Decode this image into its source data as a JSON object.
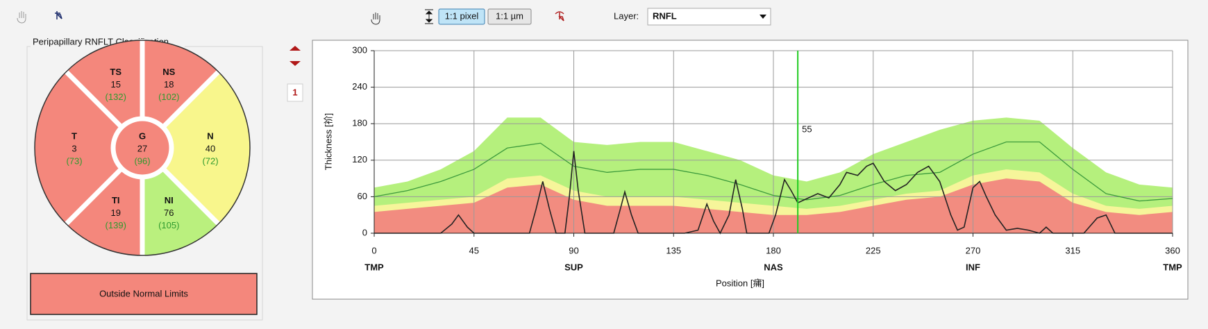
{
  "toolbar": {
    "buttons": [
      "1:1 pixel",
      "1:1 µm"
    ],
    "layer_label": "Layer:",
    "layer_value": "RNFL"
  },
  "classification": {
    "title": "Peripapillary RNFLT Classification",
    "sectors": [
      {
        "label": "TS",
        "value": 15,
        "reference": "(132)",
        "color": "#f4877c"
      },
      {
        "label": "NS",
        "value": 18,
        "reference": "(102)",
        "color": "#f4877c"
      },
      {
        "label": "N",
        "value": 40,
        "reference": "(72)",
        "color": "#f8f68c"
      },
      {
        "label": "NI",
        "value": 76,
        "reference": "(105)",
        "color": "#baf07e"
      },
      {
        "label": "TI",
        "value": 19,
        "reference": "(139)",
        "color": "#f4877c"
      },
      {
        "label": "T",
        "value": 3,
        "reference": "(73)",
        "color": "#f4877c"
      }
    ],
    "center": {
      "label": "G",
      "value": 27,
      "reference": "(96)",
      "color": "#f4877c"
    },
    "result": "Outside Normal Limits",
    "result_color": "#f4877c"
  },
  "page_index": 1,
  "chart_data": {
    "type": "line",
    "xlabel": "Position [痡]",
    "ylabel": "Thickness [祄]",
    "x": [
      0,
      15,
      30,
      45,
      60,
      75,
      90,
      105,
      120,
      135,
      150,
      165,
      180,
      195,
      210,
      225,
      240,
      255,
      270,
      285,
      300,
      315,
      330,
      345,
      360
    ],
    "xlim": [
      0,
      360
    ],
    "ylim": [
      0,
      300
    ],
    "xticks": [
      0,
      45,
      90,
      135,
      180,
      225,
      270,
      315,
      360
    ],
    "yticks": [
      0,
      60,
      120,
      180,
      240,
      300
    ],
    "x_regions": [
      {
        "value": 0,
        "label": "TMP"
      },
      {
        "value": 90,
        "label": "SUP"
      },
      {
        "value": 180,
        "label": "NAS"
      },
      {
        "value": 270,
        "label": "INF"
      },
      {
        "value": 360,
        "label": "TMP"
      }
    ],
    "grid": true,
    "series": [
      {
        "style": "area",
        "color": "#b5f07d",
        "values": [
          75,
          85,
          105,
          135,
          190,
          190,
          150,
          145,
          150,
          150,
          135,
          120,
          95,
          85,
          100,
          130,
          150,
          170,
          185,
          190,
          185,
          140,
          100,
          80,
          75
        ]
      },
      {
        "style": "area",
        "color": "#f6f59a",
        "values": [
          45,
          50,
          55,
          60,
          90,
          95,
          70,
          60,
          60,
          60,
          55,
          50,
          45,
          40,
          45,
          55,
          65,
          70,
          95,
          105,
          100,
          65,
          45,
          40,
          45
        ]
      },
      {
        "style": "area",
        "color": "#f28c80",
        "values": [
          35,
          40,
          45,
          50,
          75,
          80,
          55,
          45,
          45,
          45,
          40,
          35,
          30,
          30,
          35,
          45,
          55,
          60,
          80,
          90,
          85,
          50,
          35,
          30,
          35
        ]
      },
      {
        "style": "line",
        "color": "#3c9a3c",
        "values": [
          60,
          70,
          85,
          105,
          140,
          148,
          110,
          100,
          105,
          105,
          95,
          80,
          62,
          55,
          62,
          80,
          95,
          100,
          130,
          150,
          150,
          105,
          65,
          53,
          57
        ]
      },
      {
        "style": "line",
        "color": "#222222",
        "x": [
          0,
          30,
          35,
          38,
          42,
          45,
          70,
          73,
          76,
          79,
          82,
          86,
          88,
          90,
          92,
          95,
          108,
          111,
          113,
          116,
          119,
          140,
          146,
          150,
          153,
          156,
          160,
          163,
          166,
          168,
          178,
          181,
          185,
          188,
          191,
          194,
          200,
          205,
          210,
          213,
          218,
          222,
          225,
          230,
          235,
          240,
          245,
          250,
          255,
          260,
          263,
          266,
          270,
          273,
          276,
          280,
          285,
          290,
          295,
          300,
          303,
          306,
          320,
          326,
          330,
          334,
          360
        ],
        "values": [
          0,
          0,
          15,
          30,
          10,
          0,
          0,
          40,
          85,
          40,
          0,
          0,
          60,
          135,
          70,
          0,
          0,
          40,
          68,
          30,
          0,
          0,
          5,
          48,
          20,
          0,
          30,
          88,
          40,
          0,
          0,
          30,
          88,
          70,
          50,
          55,
          65,
          58,
          80,
          100,
          95,
          110,
          115,
          85,
          70,
          80,
          100,
          110,
          85,
          30,
          5,
          10,
          75,
          85,
          60,
          30,
          5,
          8,
          5,
          0,
          10,
          0,
          0,
          25,
          30,
          0,
          0
        ]
      }
    ],
    "cursor": {
      "x": 191,
      "value": 55,
      "color": "#22cc22"
    }
  }
}
